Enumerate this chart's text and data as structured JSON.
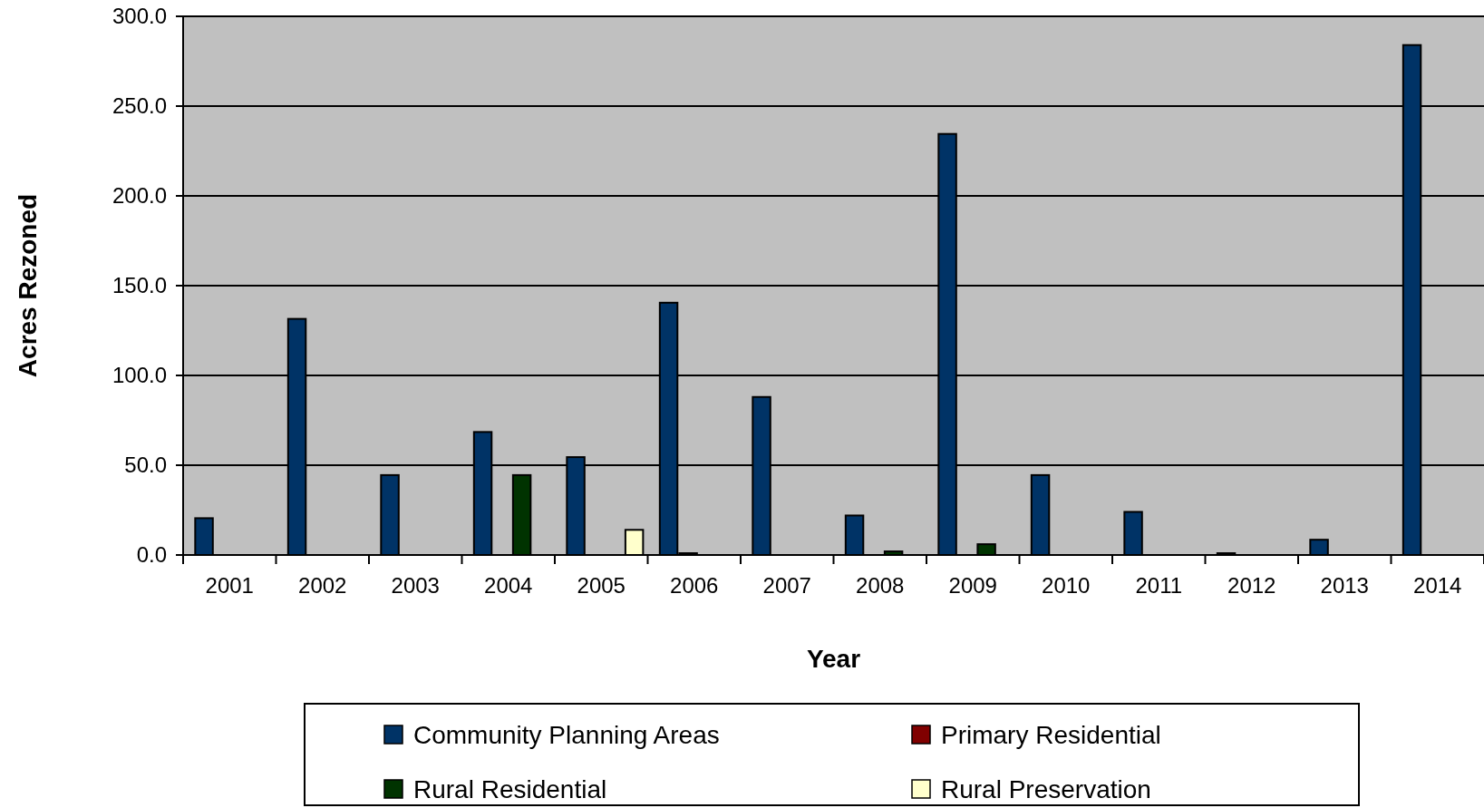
{
  "chart_data": {
    "type": "bar",
    "xlabel": "Year",
    "ylabel": "Acres Rezoned",
    "categories": [
      "2001",
      "2002",
      "2003",
      "2004",
      "2005",
      "2006",
      "2007",
      "2008",
      "2009",
      "2010",
      "2011",
      "2012",
      "2013",
      "2014"
    ],
    "series": [
      {
        "name": "Community Planning Areas",
        "color": "#003366",
        "values": [
          20.5,
          131.5,
          44.5,
          68.5,
          54.5,
          140.5,
          88,
          22,
          234.5,
          44.5,
          24,
          1,
          8.5,
          284
        ]
      },
      {
        "name": "Primary Residential",
        "color": "#800000",
        "values": [
          0,
          0,
          0,
          0,
          0,
          1,
          0,
          0,
          0,
          0,
          0,
          0,
          0,
          0
        ]
      },
      {
        "name": "Rural Residential",
        "color": "#003300",
        "values": [
          0,
          0,
          0,
          44.5,
          0,
          0,
          0,
          2,
          6,
          0,
          0,
          0,
          0,
          0
        ]
      },
      {
        "name": "Rural Preservation",
        "color": "#ffffcc",
        "values": [
          0,
          0,
          0,
          0,
          14,
          0,
          0,
          0,
          0,
          0,
          0,
          0,
          0,
          0
        ]
      }
    ],
    "ylim": [
      0,
      300
    ],
    "yticks": [
      {
        "value": 0,
        "label": "0.0"
      },
      {
        "value": 50,
        "label": "50.0"
      },
      {
        "value": 100,
        "label": "100.0"
      },
      {
        "value": 150,
        "label": "150.0"
      },
      {
        "value": 200,
        "label": "200.0"
      },
      {
        "value": 250,
        "label": "250.0"
      },
      {
        "value": 300,
        "label": "300.0"
      }
    ],
    "grid": "y",
    "legend": "bottom"
  }
}
